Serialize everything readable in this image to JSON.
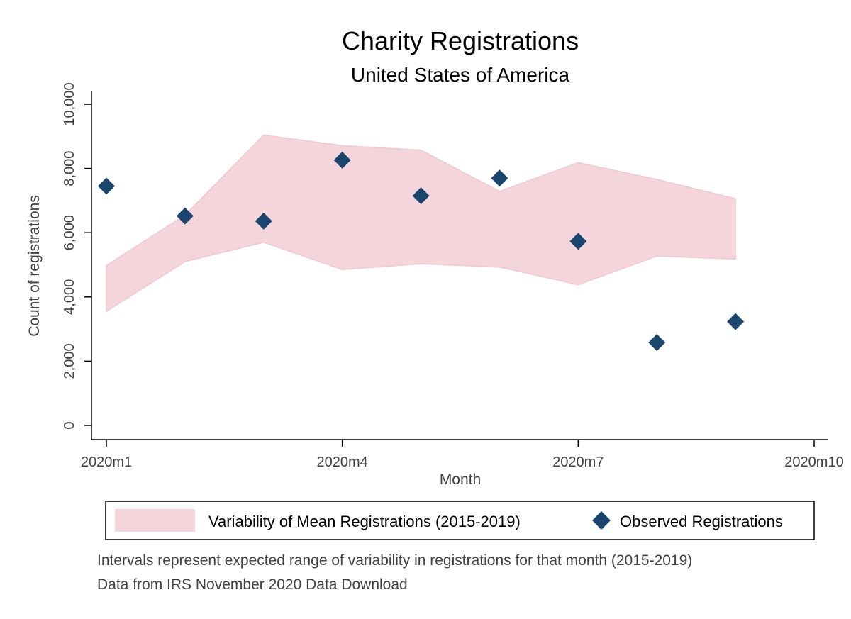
{
  "chart_data": {
    "type": "scatter",
    "title": "Charity Registrations",
    "subtitle": "United States of America",
    "xlabel": "Month",
    "ylabel": "Count of registrations",
    "x_ticks": [
      "2020m1",
      "2020m4",
      "2020m7",
      "2020m10"
    ],
    "y_ticks": [
      "0",
      "2,000",
      "4,000",
      "6,000",
      "8,000",
      "10,000"
    ],
    "xlim": [
      1,
      10
    ],
    "ylim": [
      0,
      10000
    ],
    "grid": false,
    "legend_position": "bottom",
    "band": {
      "name": "Variability of Mean Registrations (2015-2019)",
      "color": "#f4d5dc",
      "months": [
        1,
        2,
        3,
        4,
        5,
        6,
        7,
        8,
        9
      ],
      "lower": [
        3550,
        5100,
        5700,
        4850,
        5030,
        4930,
        4380,
        5270,
        5180
      ],
      "upper": [
        4980,
        6550,
        9040,
        8710,
        8570,
        7290,
        8180,
        7660,
        7060
      ]
    },
    "series": [
      {
        "name": "Observed Registrations",
        "color": "#1a456e",
        "marker": "diamond",
        "months": [
          1,
          2,
          3,
          4,
          5,
          6,
          7,
          8,
          9
        ],
        "values": [
          7450,
          6520,
          6360,
          8260,
          7150,
          7700,
          5730,
          2580,
          3230
        ]
      }
    ],
    "notes": [
      "Intervals represent expected range of variability in registrations for that month (2015-2019)",
      "Data from IRS November 2020 Data Download"
    ]
  }
}
